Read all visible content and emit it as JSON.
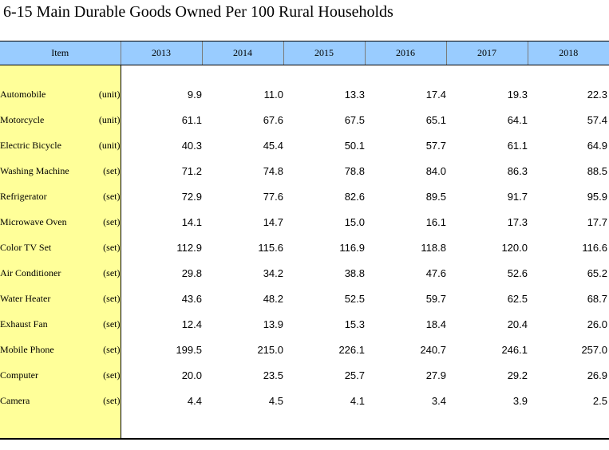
{
  "title": "6-15  Main Durable Goods Owned Per 100 Rural Households",
  "table": {
    "headers": [
      "Item",
      "2013",
      "2014",
      "2015",
      "2016",
      "2017",
      "2018"
    ],
    "rows": [
      {
        "name": "Automobile",
        "unit": "(unit)",
        "values": [
          "9.9",
          "11.0",
          "13.3",
          "17.4",
          "19.3",
          "22.3"
        ]
      },
      {
        "name": "Motorcycle",
        "unit": "(unit)",
        "values": [
          "61.1",
          "67.6",
          "67.5",
          "65.1",
          "64.1",
          "57.4"
        ]
      },
      {
        "name": "Electric Bicycle",
        "unit": "(unit)",
        "values": [
          "40.3",
          "45.4",
          "50.1",
          "57.7",
          "61.1",
          "64.9"
        ]
      },
      {
        "name": "Washing Machine",
        "unit": "(set)",
        "values": [
          "71.2",
          "74.8",
          "78.8",
          "84.0",
          "86.3",
          "88.5"
        ]
      },
      {
        "name": "Refrigerator",
        "unit": "(set)",
        "values": [
          "72.9",
          "77.6",
          "82.6",
          "89.5",
          "91.7",
          "95.9"
        ]
      },
      {
        "name": "Microwave Oven",
        "unit": "(set)",
        "values": [
          "14.1",
          "14.7",
          "15.0",
          "16.1",
          "17.3",
          "17.7"
        ]
      },
      {
        "name": "Color TV Set",
        "unit": "(set)",
        "values": [
          "112.9",
          "115.6",
          "116.9",
          "118.8",
          "120.0",
          "116.6"
        ]
      },
      {
        "name": "Air Conditioner",
        "unit": "(set)",
        "values": [
          "29.8",
          "34.2",
          "38.8",
          "47.6",
          "52.6",
          "65.2"
        ]
      },
      {
        "name": "Water Heater",
        "unit": "(set)",
        "values": [
          "43.6",
          "48.2",
          "52.5",
          "59.7",
          "62.5",
          "68.7"
        ]
      },
      {
        "name": "Exhaust Fan",
        "unit": "(set)",
        "values": [
          "12.4",
          "13.9",
          "15.3",
          "18.4",
          "20.4",
          "26.0"
        ]
      },
      {
        "name": "Mobile Phone",
        "unit": "(set)",
        "values": [
          "199.5",
          "215.0",
          "226.1",
          "240.7",
          "246.1",
          "257.0"
        ]
      },
      {
        "name": "Computer",
        "unit": "(set)",
        "values": [
          "20.0",
          "23.5",
          "25.7",
          "27.9",
          "29.2",
          "26.9"
        ]
      },
      {
        "name": "Camera",
        "unit": "(set)",
        "values": [
          "4.4",
          "4.5",
          "4.1",
          "3.4",
          "3.9",
          "2.5"
        ]
      }
    ]
  }
}
